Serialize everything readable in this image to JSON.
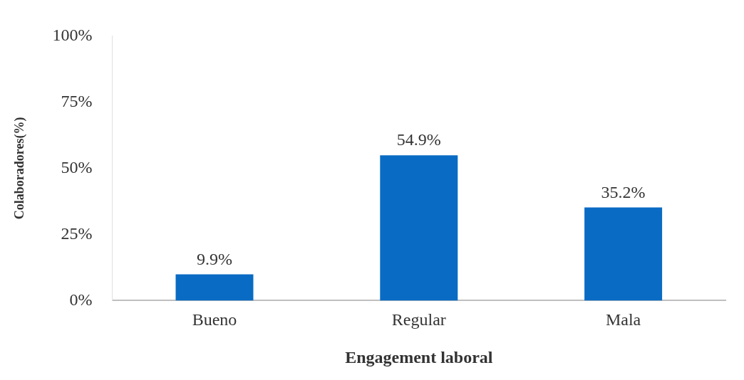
{
  "chart_data": {
    "type": "bar",
    "xlabel": "Engagement laboral",
    "ylabel": "Colaboradores(%)",
    "categories": [
      "Bueno",
      "Regular",
      "Mala"
    ],
    "values": [
      9.9,
      54.9,
      35.2
    ],
    "color": "#0a6bc4",
    "value_labels": [
      "9.9%",
      "54.9%",
      "35.2%"
    ],
    "ylim": [
      0,
      100
    ],
    "yticks": [
      {
        "value": 0,
        "label": "0%"
      },
      {
        "value": 25,
        "label": "25%"
      },
      {
        "value": 50,
        "label": "50%"
      },
      {
        "value": 75,
        "label": "75%"
      },
      {
        "value": 100,
        "label": "100%"
      }
    ],
    "grid": false,
    "legend": false
  }
}
